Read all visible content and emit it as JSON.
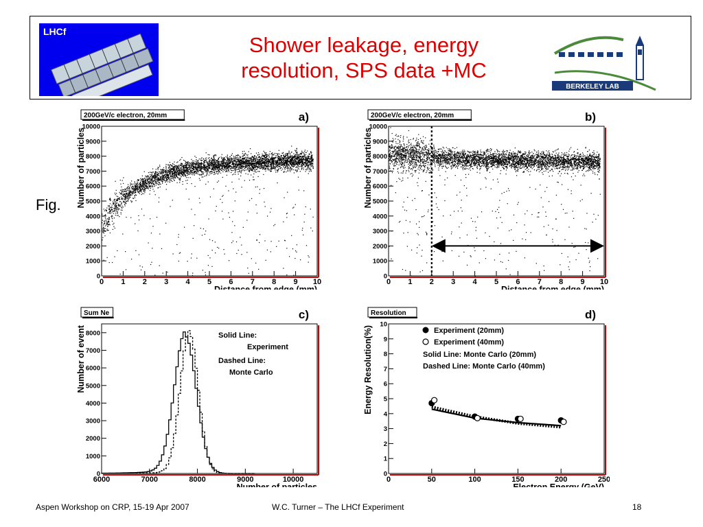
{
  "header": {
    "lhcf_logo_text": "LHCf",
    "title_line1": "Shower leakage, energy",
    "title_line2": "resolution, SPS data +MC",
    "berkeley_logo_text": "BERKELEY LAB"
  },
  "fig_label": "Fig.",
  "footer": {
    "left": "Aspen Workshop on CRP, 15-19 Apr 2007",
    "center": "W.C. Turner – The LHCf Experiment",
    "page": "18"
  },
  "chart_data": [
    {
      "id": "a",
      "type": "scatter",
      "panel_label": "a)",
      "title_box": "200GeV/c electron, 20mm",
      "xlabel": "Distance from edge (mm)",
      "ylabel": "Number of particles",
      "xlim": [
        0,
        10
      ],
      "ylim": [
        0,
        10000
      ],
      "xticks": [
        "0",
        "1",
        "2",
        "3",
        "4",
        "5",
        "6",
        "7",
        "8",
        "9",
        "10"
      ],
      "yticks": [
        "0",
        "1000",
        "2000",
        "3000",
        "4000",
        "5000",
        "6000",
        "7000",
        "8000",
        "9000",
        "10000"
      ],
      "trend": {
        "x": [
          0,
          0.5,
          1,
          1.5,
          2,
          2.5,
          3,
          3.5,
          4,
          5,
          6,
          7,
          8,
          9,
          9.8
        ],
        "y": [
          3200,
          4500,
          5300,
          5800,
          6200,
          6550,
          6850,
          7050,
          7200,
          7400,
          7500,
          7600,
          7650,
          7700,
          7700
        ]
      },
      "point_count": 4500,
      "point_color": "#000000"
    },
    {
      "id": "b",
      "type": "scatter",
      "panel_label": "b)",
      "title_box": "200GeV/c electron, 20mm",
      "xlabel": "Distance from edge (mm)",
      "ylabel": "Number of particles",
      "xlim": [
        0,
        10
      ],
      "ylim": [
        0,
        10000
      ],
      "xticks": [
        "0",
        "1",
        "2",
        "3",
        "4",
        "5",
        "6",
        "7",
        "8",
        "9",
        "10"
      ],
      "yticks": [
        "0",
        "1000",
        "2000",
        "3000",
        "4000",
        "5000",
        "6000",
        "7000",
        "8000",
        "9000",
        "10000"
      ],
      "trend": {
        "x": [
          0,
          1,
          2,
          3,
          5,
          7,
          9,
          9.8
        ],
        "y": [
          8200,
          8100,
          7950,
          7850,
          7750,
          7700,
          7650,
          7600
        ]
      },
      "point_count": 4500,
      "point_color": "#000000",
      "cut_x": 2,
      "arrow": {
        "x1": 2,
        "x2": 10,
        "y": 2000
      }
    },
    {
      "id": "c",
      "type": "histogram",
      "panel_label": "c)",
      "title_box": "Sum Ne",
      "xlabel": "Number of particles",
      "ylabel": "Number of event",
      "xlim": [
        6000,
        10500
      ],
      "ylim": [
        0,
        8500
      ],
      "xticks": [
        "6000",
        "7000",
        "8000",
        "9000",
        "10000"
      ],
      "yticks": [
        "0",
        "1000",
        "2000",
        "3000",
        "4000",
        "5000",
        "6000",
        "7000",
        "8000"
      ],
      "annotations": [
        "Solid Line:",
        "Experiment",
        "Dashed Line:",
        "Monte Carlo"
      ],
      "series": [
        {
          "name": "Experiment",
          "style": "solid",
          "mean": 7750,
          "sigma": 230,
          "peak": 7800,
          "tail": 300
        },
        {
          "name": "Monte Carlo",
          "style": "dashed",
          "mean": 7830,
          "sigma": 190,
          "peak": 8000,
          "tail": 120
        }
      ]
    },
    {
      "id": "d",
      "type": "scatter",
      "panel_label": "d)",
      "title_box": "Resolution",
      "xlabel": "Electron Energy (GeV)",
      "ylabel": "Energy Resolution(%)",
      "xlim": [
        0,
        250
      ],
      "ylim": [
        0,
        10
      ],
      "xticks": [
        "0",
        "50",
        "100",
        "150",
        "200",
        "250"
      ],
      "yticks": [
        "0",
        "1",
        "2",
        "3",
        "4",
        "5",
        "6",
        "7",
        "8",
        "9",
        "10"
      ],
      "legend": [
        "Experiment (20mm)",
        "Experiment (40mm)",
        "Solid Line: Monte Carlo (20mm)",
        "Dashed Line: Monte Carlo (40mm)"
      ],
      "series": [
        {
          "name": "Experiment (20mm)",
          "marker": "filled",
          "x": [
            50,
            100,
            150,
            200
          ],
          "y": [
            4.7,
            3.8,
            3.65,
            3.55
          ]
        },
        {
          "name": "Experiment (40mm)",
          "marker": "open",
          "x": [
            53,
            103,
            153,
            203
          ],
          "y": [
            4.9,
            3.7,
            3.65,
            3.45
          ]
        },
        {
          "name": "Solid Line: Monte Carlo (20mm)",
          "style": "solid",
          "x": [
            50,
            100,
            150,
            200
          ],
          "y": [
            4.3,
            3.7,
            3.4,
            3.2
          ]
        },
        {
          "name": "Dashed Line: Monte Carlo (40mm)",
          "style": "dashed",
          "x": [
            50,
            100,
            150,
            200
          ],
          "y": [
            4.45,
            3.8,
            3.35,
            3.1
          ]
        }
      ]
    }
  ]
}
